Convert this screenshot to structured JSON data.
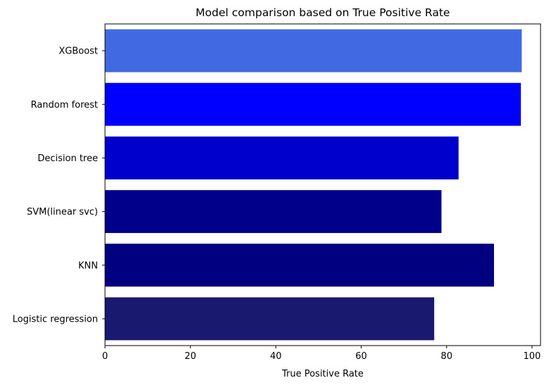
{
  "chart_data": {
    "type": "bar",
    "orientation": "horizontal",
    "title": "Model comparison based on True Positive Rate",
    "xlabel": "True Positive Rate",
    "ylabel": "",
    "categories": [
      "XGBoost",
      "Random forest",
      "Decision tree",
      "SVM(linear svc)",
      "KNN",
      "Logistic regression"
    ],
    "values": [
      97.6,
      97.4,
      82.8,
      78.8,
      91.1,
      77.1
    ],
    "colors": [
      "#4169e1",
      "#0000ff",
      "#0000cd",
      "#00008b",
      "#000080",
      "#191970"
    ],
    "xlim": [
      0,
      102
    ],
    "xticks": [
      0,
      20,
      40,
      60,
      80,
      100
    ],
    "grid": false,
    "legend": "none"
  }
}
